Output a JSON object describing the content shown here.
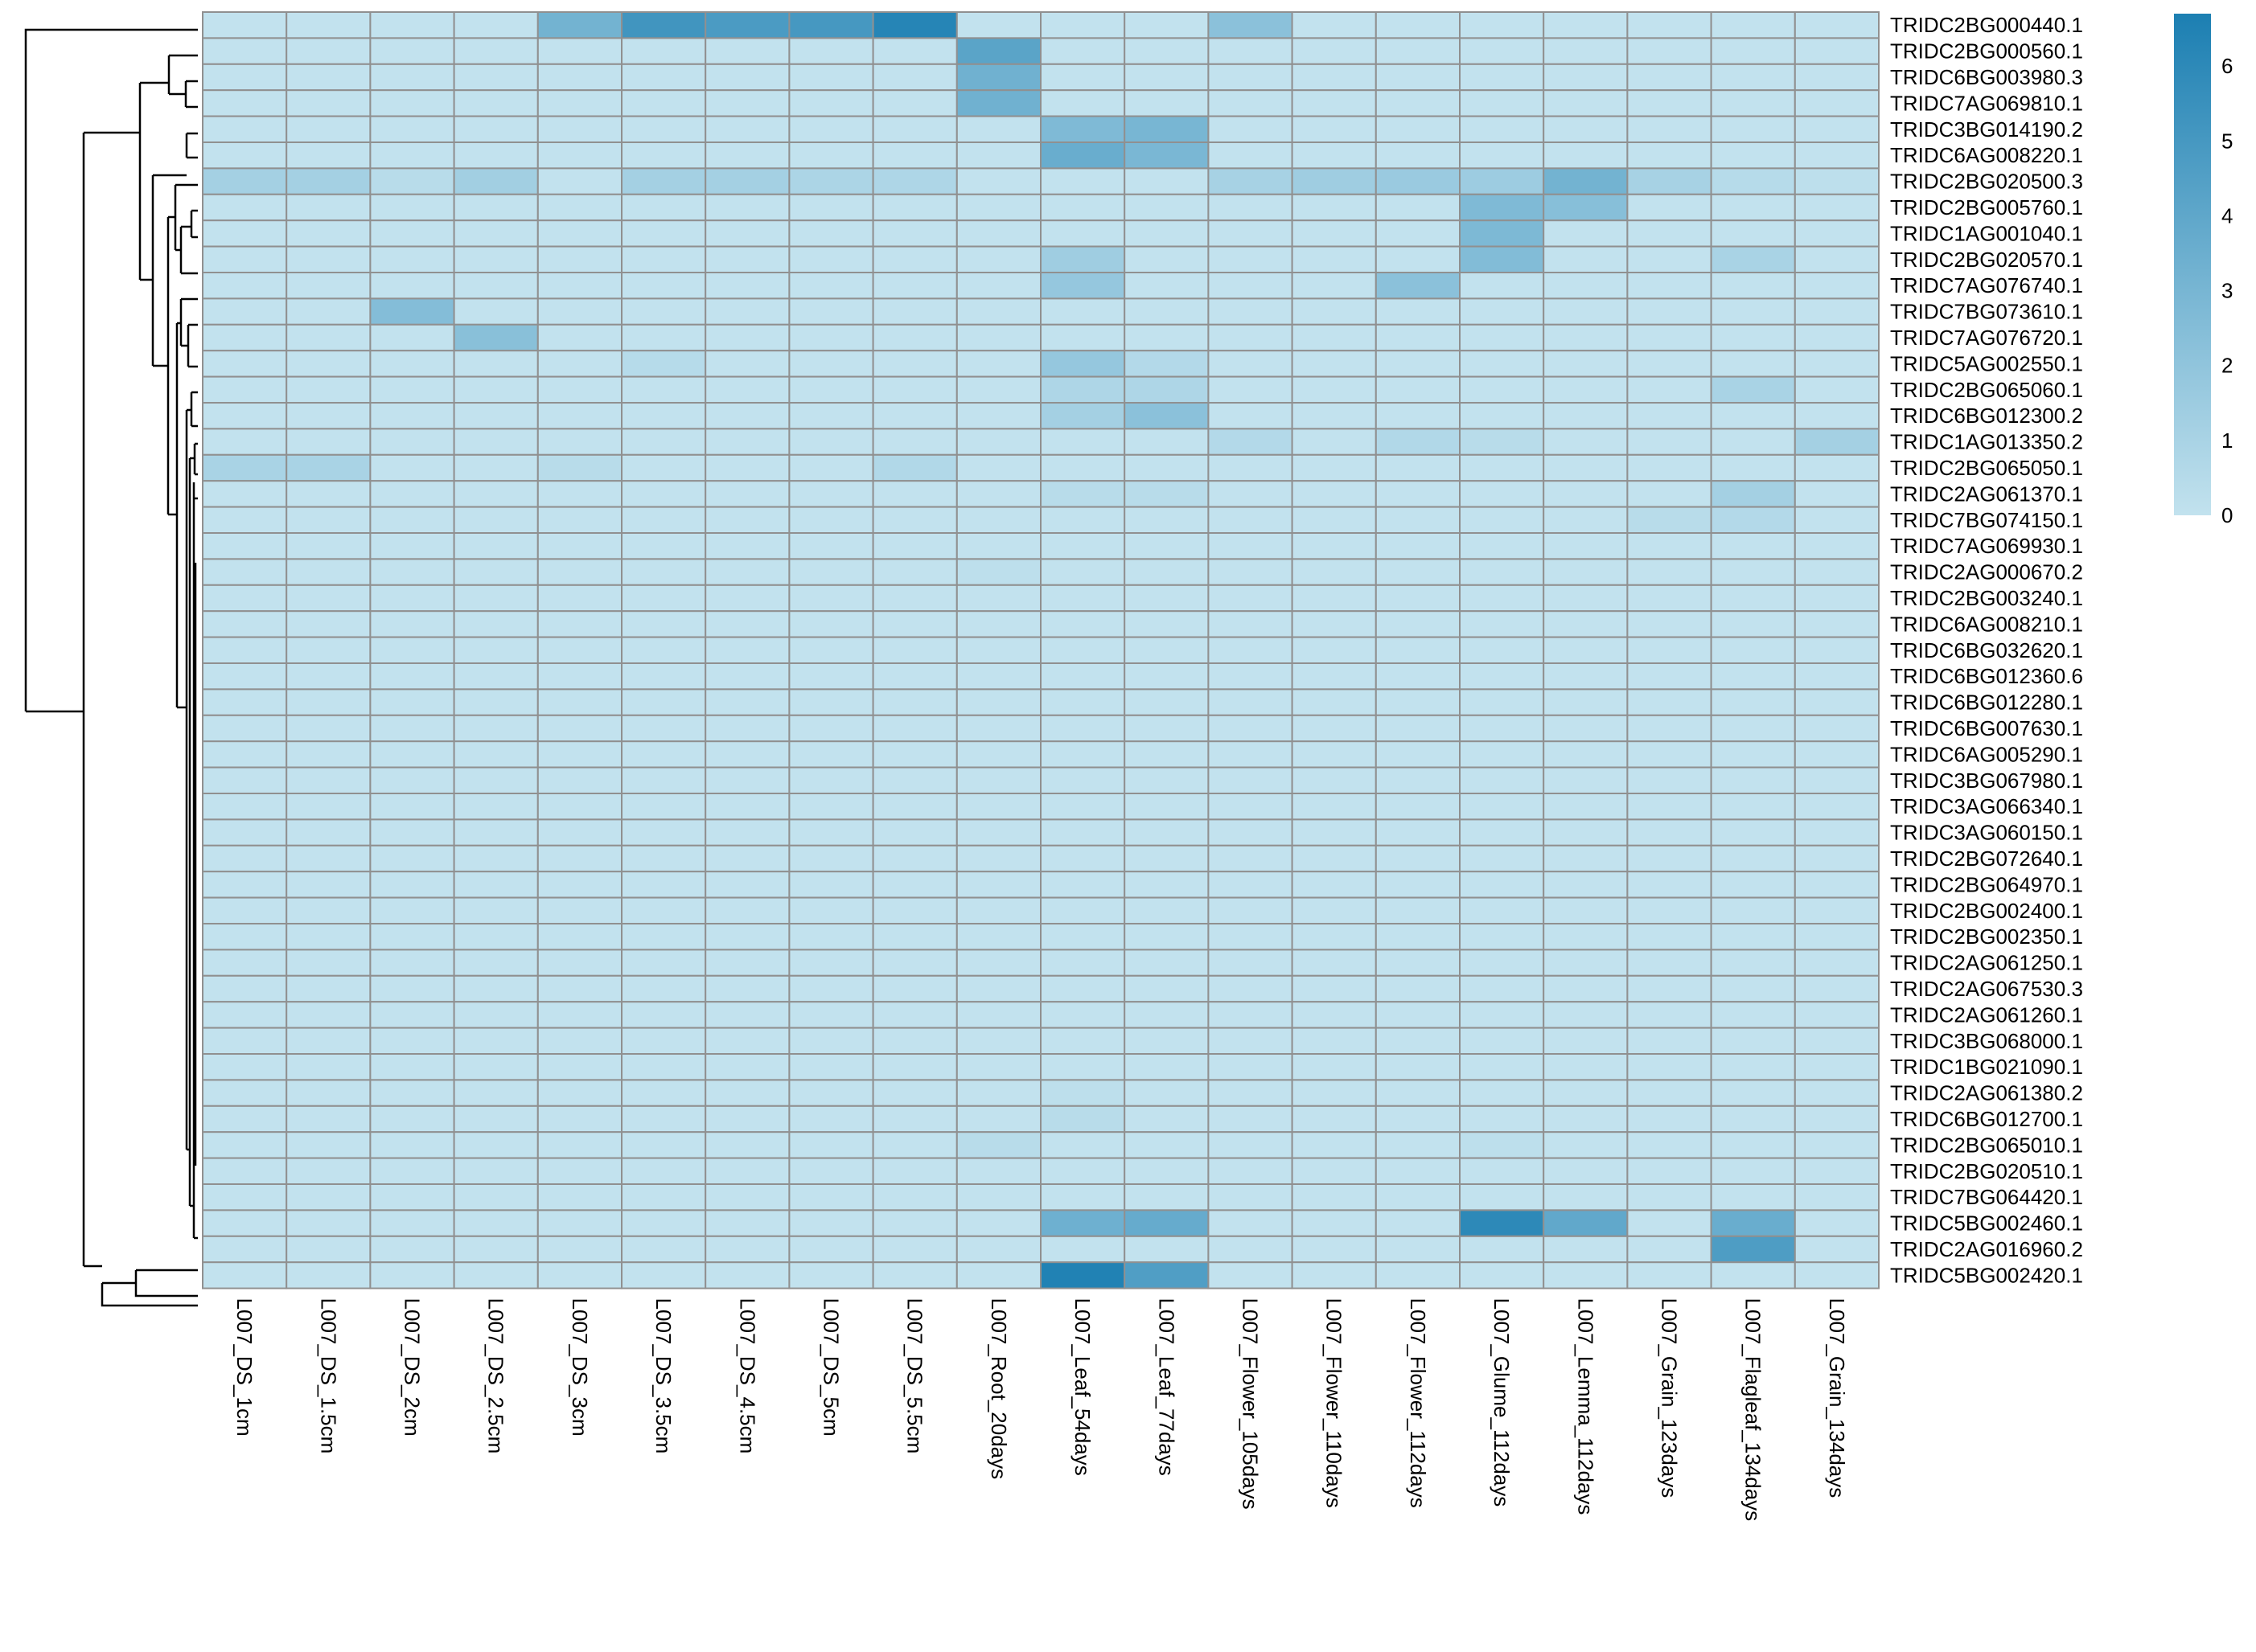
{
  "chart_data": {
    "type": "heatmap",
    "columns": [
      "L007_DS_1cm",
      "L007_DS_1.5cm",
      "L007_DS_2cm",
      "L007_DS_2.5cm",
      "L007_DS_3cm",
      "L007_DS_3.5cm",
      "L007_DS_4.5cm",
      "L007_DS_5cm",
      "L007_DS_5.5cm",
      "L007_Root_20days",
      "L007_Leaf_54days",
      "L007_Leaf_77days",
      "L007_Flower_105days",
      "L007_Flower_110days",
      "L007_Flower_112days",
      "L007_Glume_112days",
      "L007_Lemma_112days",
      "L007_Grain_123days",
      "L007_Flagleaf_134days",
      "L007_Grain_134days"
    ],
    "rows": [
      "TRIDC2BG000440.1",
      "TRIDC2BG000560.1",
      "TRIDC6BG003980.3",
      "TRIDC7AG069810.1",
      "TRIDC3BG014190.2",
      "TRIDC6AG008220.1",
      "TRIDC2BG020500.3",
      "TRIDC2BG005760.1",
      "TRIDC1AG001040.1",
      "TRIDC2BG020570.1",
      "TRIDC7AG076740.1",
      "TRIDC7BG073610.1",
      "TRIDC7AG076720.1",
      "TRIDC5AG002550.1",
      "TRIDC2BG065060.1",
      "TRIDC6BG012300.2",
      "TRIDC1AG013350.2",
      "TRIDC2BG065050.1",
      "TRIDC2AG061370.1",
      "TRIDC7BG074150.1",
      "TRIDC7AG069930.1",
      "TRIDC2AG000670.2",
      "TRIDC2BG003240.1",
      "TRIDC6AG008210.1",
      "TRIDC6BG032620.1",
      "TRIDC6BG012360.6",
      "TRIDC6BG012280.1",
      "TRIDC6BG007630.1",
      "TRIDC6AG005290.1",
      "TRIDC3BG067980.1",
      "TRIDC3AG066340.1",
      "TRIDC3AG060150.1",
      "TRIDC2BG072640.1",
      "TRIDC2BG064970.1",
      "TRIDC2BG002400.1",
      "TRIDC2BG002350.1",
      "TRIDC2AG061250.1",
      "TRIDC2AG067530.3",
      "TRIDC2AG061260.1",
      "TRIDC3BG068000.1",
      "TRIDC1BG021090.1",
      "TRIDC2AG061380.2",
      "TRIDC6BG012700.1",
      "TRIDC2BG065010.1",
      "TRIDC2BG020510.1",
      "TRIDC7BG064420.1",
      "TRIDC5BG002460.1",
      "TRIDC2AG016960.2",
      "TRIDC5BG002420.1"
    ],
    "values": [
      [
        0,
        0,
        0,
        0,
        3.2,
        5.2,
        4.8,
        5,
        6.3,
        0,
        0,
        0,
        2.2,
        0,
        0,
        0,
        0,
        0,
        0,
        0
      ],
      [
        0,
        0,
        0,
        0,
        0,
        0,
        0,
        0,
        0,
        4.2,
        0,
        0,
        0,
        0,
        0,
        0,
        0,
        0,
        0,
        0
      ],
      [
        0,
        0,
        0,
        0,
        0,
        0,
        0,
        0,
        0,
        3.3,
        0,
        0,
        0,
        0,
        0,
        0,
        0,
        0,
        0,
        0
      ],
      [
        0,
        0,
        0,
        0,
        0,
        0,
        0,
        0,
        0,
        3.3,
        0,
        0,
        0,
        0,
        0,
        0,
        0,
        0,
        0,
        0
      ],
      [
        0,
        0,
        0,
        0,
        0,
        0,
        0,
        0,
        0,
        0,
        2.7,
        3,
        0,
        0,
        0,
        0,
        0,
        0,
        0,
        0
      ],
      [
        0,
        0,
        0,
        0,
        0,
        0,
        0,
        0,
        0,
        0,
        3.6,
        2.9,
        0,
        0,
        0,
        0,
        0,
        0,
        0,
        0
      ],
      [
        1.2,
        1.2,
        0.4,
        1.3,
        0,
        1.2,
        1.2,
        0.9,
        0.8,
        0,
        0,
        0,
        1.1,
        1.4,
        1.6,
        1.5,
        3.2,
        1.1,
        0.5,
        0.2
      ],
      [
        0,
        0,
        0,
        0,
        0,
        0,
        0,
        0,
        0,
        0,
        0,
        0,
        0,
        0,
        0,
        2.7,
        2.4,
        0,
        0,
        0
      ],
      [
        0,
        0,
        0,
        0,
        0,
        0,
        0,
        0,
        0,
        0,
        0,
        0,
        0,
        0,
        0,
        2.8,
        0,
        0,
        0,
        0
      ],
      [
        0,
        0,
        0,
        0,
        0,
        0,
        0,
        0,
        0,
        0,
        1.4,
        0,
        0,
        0,
        0,
        2.6,
        0,
        0,
        1,
        0
      ],
      [
        0,
        0,
        0,
        0,
        0,
        0,
        0,
        0,
        0,
        0,
        1.8,
        0,
        0,
        0,
        2.2,
        0,
        0,
        0,
        0,
        0
      ],
      [
        0,
        0,
        2.5,
        0,
        0,
        0,
        0,
        0,
        0,
        0,
        0,
        0,
        0,
        0,
        0,
        0,
        0,
        0,
        0,
        0
      ],
      [
        0,
        0,
        0,
        2.3,
        0,
        0,
        0,
        0,
        0,
        0,
        0,
        0,
        0,
        0,
        0,
        0,
        0,
        0,
        0,
        0
      ],
      [
        0,
        0,
        0,
        0,
        0,
        0.5,
        0,
        0,
        0,
        0,
        1.8,
        0.6,
        0,
        0,
        0,
        0,
        0,
        0,
        0,
        0
      ],
      [
        0,
        0,
        0,
        0,
        0,
        0,
        0,
        0,
        0,
        0,
        0.8,
        0.8,
        0,
        0,
        0,
        0,
        0,
        0,
        1,
        0
      ],
      [
        0,
        0,
        0,
        0,
        0,
        0,
        0,
        0,
        0,
        0,
        1.2,
        2.2,
        0,
        0,
        0,
        0,
        0,
        0,
        0,
        0
      ],
      [
        0,
        0,
        0,
        0,
        0,
        0,
        0,
        0,
        0,
        0,
        0,
        0,
        0.6,
        0,
        0.7,
        0.4,
        0,
        0,
        0,
        1.2
      ],
      [
        1,
        1,
        0,
        0,
        0.4,
        0,
        0,
        0,
        0.7,
        0,
        0,
        0,
        0,
        0,
        0,
        0,
        0,
        0,
        0,
        0
      ],
      [
        0,
        0,
        0,
        0,
        0,
        0,
        0,
        0,
        0,
        0,
        0.4,
        0.4,
        0,
        0,
        0,
        0,
        0,
        0,
        1.2,
        0
      ],
      [
        0,
        0,
        0,
        0,
        0,
        0,
        0,
        0,
        0,
        0,
        0,
        0,
        0,
        0,
        0,
        0,
        0,
        0.4,
        0.6,
        0
      ],
      [
        0,
        0,
        0,
        0,
        0,
        0,
        0,
        0,
        0,
        0,
        0,
        0,
        0,
        0,
        0,
        0,
        0,
        0,
        0,
        0
      ],
      [
        0,
        0,
        0,
        0,
        0,
        0,
        0,
        0,
        0,
        0.2,
        0,
        0,
        0,
        0,
        0,
        0,
        0,
        0,
        0,
        0
      ],
      [
        0,
        0,
        0,
        0,
        0,
        0,
        0,
        0,
        0,
        0,
        0,
        0,
        0,
        0,
        0,
        0,
        0,
        0,
        0,
        0
      ],
      [
        0,
        0,
        0,
        0,
        0,
        0,
        0,
        0,
        0,
        0,
        0,
        0,
        0,
        0,
        0,
        0,
        0,
        0,
        0,
        0
      ],
      [
        0,
        0,
        0,
        0,
        0,
        0,
        0,
        0,
        0,
        0,
        0,
        0,
        0,
        0,
        0,
        0,
        0,
        0,
        0,
        0
      ],
      [
        0,
        0,
        0,
        0,
        0,
        0,
        0,
        0,
        0,
        0,
        0,
        0,
        0,
        0,
        0,
        0,
        0,
        0,
        0,
        0
      ],
      [
        0,
        0,
        0,
        0,
        0,
        0,
        0,
        0,
        0,
        0,
        0,
        0,
        0,
        0,
        0,
        0,
        0,
        0,
        0,
        0
      ],
      [
        0,
        0,
        0,
        0,
        0,
        0,
        0,
        0,
        0,
        0,
        0,
        0,
        0,
        0,
        0,
        0,
        0,
        0,
        0,
        0
      ],
      [
        0,
        0,
        0,
        0,
        0,
        0,
        0,
        0,
        0,
        0,
        0,
        0,
        0,
        0,
        0,
        0,
        0,
        0,
        0,
        0
      ],
      [
        0,
        0,
        0,
        0,
        0,
        0,
        0,
        0,
        0,
        0,
        0,
        0,
        0,
        0,
        0,
        0,
        0,
        0,
        0,
        0
      ],
      [
        0,
        0,
        0,
        0,
        0,
        0,
        0,
        0,
        0,
        0,
        0,
        0,
        0,
        0,
        0,
        0,
        0,
        0,
        0,
        0
      ],
      [
        0,
        0,
        0,
        0,
        0,
        0,
        0,
        0,
        0,
        0,
        0,
        0,
        0,
        0,
        0,
        0,
        0,
        0,
        0,
        0
      ],
      [
        0,
        0,
        0,
        0,
        0,
        0,
        0,
        0,
        0,
        0,
        0,
        0,
        0,
        0,
        0,
        0,
        0,
        0,
        0,
        0
      ],
      [
        0,
        0,
        0,
        0,
        0,
        0,
        0,
        0,
        0,
        0,
        0,
        0,
        0,
        0,
        0,
        0,
        0,
        0,
        0,
        0
      ],
      [
        0,
        0,
        0,
        0,
        0,
        0,
        0,
        0,
        0,
        0,
        0,
        0,
        0,
        0,
        0,
        0,
        0,
        0,
        0,
        0
      ],
      [
        0,
        0,
        0,
        0,
        0,
        0,
        0,
        0,
        0,
        0,
        0,
        0,
        0,
        0,
        0,
        0,
        0,
        0,
        0,
        0
      ],
      [
        0,
        0,
        0,
        0,
        0,
        0,
        0,
        0,
        0,
        0,
        0,
        0,
        0,
        0,
        0,
        0,
        0,
        0,
        0,
        0
      ],
      [
        0,
        0,
        0,
        0,
        0,
        0,
        0,
        0,
        0,
        0,
        0,
        0,
        0,
        0,
        0,
        0,
        0,
        0,
        0,
        0
      ],
      [
        0,
        0,
        0,
        0,
        0,
        0,
        0,
        0,
        0,
        0,
        0,
        0,
        0,
        0,
        0,
        0,
        0,
        0,
        0,
        0
      ],
      [
        0,
        0,
        0,
        0,
        0,
        0,
        0,
        0,
        0,
        0,
        0,
        0,
        0,
        0,
        0,
        0,
        0,
        0,
        0,
        0
      ],
      [
        0,
        0,
        0,
        0,
        0,
        0,
        0,
        0,
        0,
        0,
        0,
        0,
        0,
        0,
        0,
        0,
        0,
        0,
        0,
        0
      ],
      [
        0,
        0,
        0,
        0,
        0,
        0,
        0,
        0,
        0,
        0,
        0.2,
        0,
        0,
        0,
        0,
        0,
        0,
        0,
        0,
        0
      ],
      [
        0,
        0,
        0,
        0,
        0,
        0,
        0,
        0,
        0,
        0,
        0.4,
        0,
        0,
        0,
        0,
        0,
        0,
        0,
        0,
        0
      ],
      [
        0,
        0,
        0,
        0,
        0,
        0,
        0,
        0,
        0,
        0.4,
        0,
        0,
        0,
        0,
        0,
        0.2,
        0,
        0,
        0,
        0
      ],
      [
        0,
        0,
        0,
        0,
        0,
        0,
        0,
        0,
        0,
        0,
        0,
        0,
        0,
        0,
        0,
        0,
        0,
        0,
        0,
        0
      ],
      [
        0,
        0,
        0,
        0,
        0,
        0,
        0,
        0,
        0,
        0,
        0,
        0,
        0,
        0,
        0,
        0,
        0,
        0,
        0,
        0
      ],
      [
        0,
        0,
        0,
        0,
        0,
        0,
        0,
        0,
        0,
        0,
        3.4,
        3.7,
        0,
        0,
        0,
        6,
        3.9,
        0,
        3.6,
        0
      ],
      [
        0,
        0,
        0,
        0,
        0,
        0,
        0,
        0,
        0,
        0,
        0,
        0,
        0,
        0,
        0,
        0,
        0,
        0,
        4.7,
        0
      ],
      [
        0,
        0,
        0,
        0,
        0,
        0,
        0,
        0,
        0,
        0,
        6.5,
        4.6,
        0,
        0,
        0,
        0,
        0,
        0,
        0,
        0
      ]
    ],
    "color_scale": {
      "min": 0,
      "max": 6.7,
      "low_color": "#C2E2EE",
      "high_color": "#1C7FB2"
    },
    "legend_ticks": [
      0,
      1,
      2,
      3,
      4,
      5,
      6
    ],
    "cell_border_color": "#909090",
    "row_dendrogram": true
  }
}
